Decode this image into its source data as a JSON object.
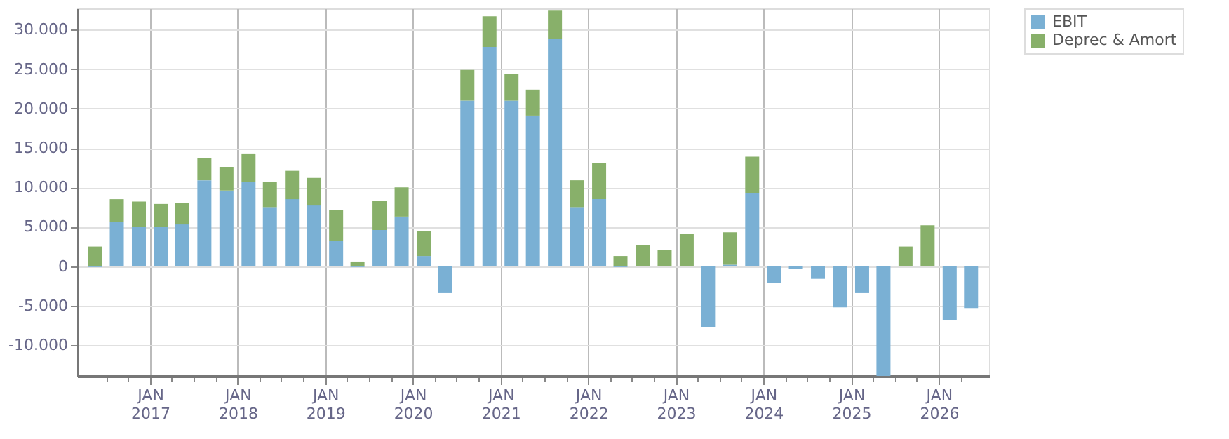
{
  "chart_data": {
    "type": "bar",
    "stacked": true,
    "x": [
      "2016-05-15",
      "2016-08-15",
      "2016-11-15",
      "2017-02-15",
      "2017-05-15",
      "2017-08-15",
      "2017-11-15",
      "2018-02-15",
      "2018-05-15",
      "2018-08-15",
      "2018-11-15",
      "2019-02-15",
      "2019-05-15",
      "2019-08-15",
      "2019-11-15",
      "2020-02-15",
      "2020-05-15",
      "2020-08-15",
      "2020-11-15",
      "2021-02-15",
      "2021-05-15",
      "2021-08-15",
      "2021-11-15",
      "2022-02-15",
      "2022-05-15",
      "2022-08-15",
      "2022-11-15",
      "2023-02-15",
      "2023-05-15",
      "2023-08-15",
      "2023-11-15",
      "2024-02-15",
      "2024-05-15",
      "2024-08-15",
      "2024-11-15",
      "2025-02-15",
      "2025-05-15",
      "2025-08-15",
      "2025-11-15",
      "2026-02-15",
      "2026-05-15"
    ],
    "series": [
      {
        "name": "EBIT",
        "color": "#7ab0d4",
        "values": [
          -100,
          5600,
          5000,
          5000,
          5300,
          10900,
          9600,
          10700,
          7500,
          8500,
          7700,
          3200,
          -100,
          4600,
          6300,
          1300,
          -3400,
          21000,
          27800,
          21000,
          19100,
          28800,
          7500,
          8500,
          -100,
          null,
          null,
          null,
          -7700,
          200,
          9300,
          -2100,
          -300,
          -1600,
          -5200,
          -3400,
          -13900,
          null,
          null,
          -6800,
          -5300
        ]
      },
      {
        "name": "Deprec & Amort",
        "color": "#88b06a",
        "values": [
          2500,
          2900,
          3200,
          2900,
          2700,
          2800,
          3000,
          3600,
          3200,
          3600,
          3500,
          3900,
          600,
          3700,
          3700,
          3200,
          null,
          3900,
          3900,
          3400,
          3300,
          3700,
          3400,
          4600,
          1300,
          2700,
          2100,
          4100,
          null,
          4100,
          4600,
          null,
          null,
          null,
          null,
          null,
          null,
          2500,
          5200,
          null,
          null
        ]
      }
    ],
    "ylim": [
      -13900,
      32700
    ],
    "yticks": [
      {
        "value": -10000,
        "label": "-10.000"
      },
      {
        "value": -5000,
        "label": "-5.000"
      },
      {
        "value": 0,
        "label": "0"
      },
      {
        "value": 5000,
        "label": "5.000"
      },
      {
        "value": 10000,
        "label": "10.000"
      },
      {
        "value": 15000,
        "label": "15.000"
      },
      {
        "value": 20000,
        "label": "20.000"
      },
      {
        "value": 25000,
        "label": "25.000"
      },
      {
        "value": 30000,
        "label": "30.000"
      }
    ],
    "xlim": [
      "2016-04-01",
      "2026-06-30"
    ],
    "xticks": [
      {
        "value": "2016-07-01",
        "label": null
      },
      {
        "value": "2016-10-01",
        "label": null
      },
      {
        "value": "2017-01-01",
        "label": "JAN 2017"
      },
      {
        "value": "2017-04-01",
        "label": null
      },
      {
        "value": "2017-07-01",
        "label": null
      },
      {
        "value": "2017-10-01",
        "label": null
      },
      {
        "value": "2018-01-01",
        "label": "JAN 2018"
      },
      {
        "value": "2018-04-01",
        "label": null
      },
      {
        "value": "2018-07-01",
        "label": null
      },
      {
        "value": "2018-10-01",
        "label": null
      },
      {
        "value": "2019-01-01",
        "label": "JAN 2019"
      },
      {
        "value": "2019-04-01",
        "label": null
      },
      {
        "value": "2019-07-01",
        "label": null
      },
      {
        "value": "2019-10-01",
        "label": null
      },
      {
        "value": "2020-01-01",
        "label": "JAN 2020"
      },
      {
        "value": "2020-04-01",
        "label": null
      },
      {
        "value": "2020-07-01",
        "label": null
      },
      {
        "value": "2020-10-01",
        "label": null
      },
      {
        "value": "2021-01-01",
        "label": "JAN 2021"
      },
      {
        "value": "2021-04-01",
        "label": null
      },
      {
        "value": "2021-07-01",
        "label": null
      },
      {
        "value": "2021-10-01",
        "label": null
      },
      {
        "value": "2022-01-01",
        "label": "JAN 2022"
      },
      {
        "value": "2022-04-01",
        "label": null
      },
      {
        "value": "2022-07-01",
        "label": null
      },
      {
        "value": "2022-10-01",
        "label": null
      },
      {
        "value": "2023-01-01",
        "label": "JAN 2023"
      },
      {
        "value": "2023-04-01",
        "label": null
      },
      {
        "value": "2023-07-01",
        "label": null
      },
      {
        "value": "2023-10-01",
        "label": null
      },
      {
        "value": "2024-01-01",
        "label": "JAN 2024"
      },
      {
        "value": "2024-04-01",
        "label": null
      },
      {
        "value": "2024-07-01",
        "label": null
      },
      {
        "value": "2024-10-01",
        "label": null
      },
      {
        "value": "2025-01-01",
        "label": "JAN 2025"
      },
      {
        "value": "2025-04-01",
        "label": null
      },
      {
        "value": "2025-07-01",
        "label": null
      },
      {
        "value": "2025-10-01",
        "label": null
      },
      {
        "value": "2026-01-01",
        "label": "JAN 2026"
      },
      {
        "value": "2026-04-01",
        "label": null
      }
    ],
    "grid": true,
    "legend": "top right"
  }
}
